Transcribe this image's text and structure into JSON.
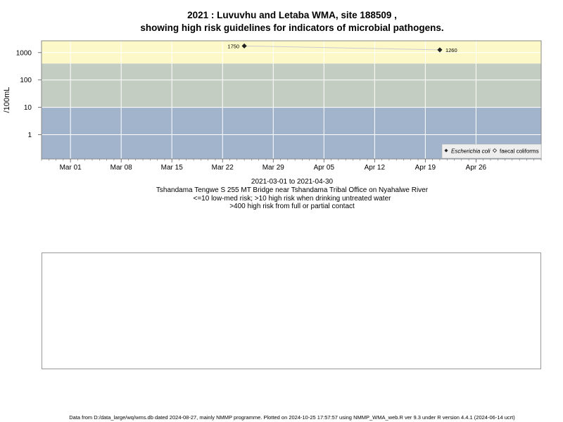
{
  "chart_data": {
    "type": "scatter",
    "title_line1": "2021 : Luvuvhu and Letaba WMA, site 188509 ,",
    "title_line2": "showing high risk guidelines for indicators of microbial pathogens.",
    "ylabel": "/100mL",
    "y_scale": "log",
    "ylim": [
      0.13,
      2700
    ],
    "y_ticks": [
      {
        "value": 1,
        "label": "1"
      },
      {
        "value": 10,
        "label": "10"
      },
      {
        "value": 100,
        "label": "100"
      },
      {
        "value": 1000,
        "label": "1000"
      }
    ],
    "x_domain": [
      "2021-02-25",
      "2021-05-05"
    ],
    "x_ticks": [
      {
        "date": "2021-03-01",
        "label": "Mar 01"
      },
      {
        "date": "2021-03-08",
        "label": "Mar 08"
      },
      {
        "date": "2021-03-15",
        "label": "Mar 15"
      },
      {
        "date": "2021-03-22",
        "label": "Mar 22"
      },
      {
        "date": "2021-03-29",
        "label": "Mar 29"
      },
      {
        "date": "2021-04-05",
        "label": "Apr 05"
      },
      {
        "date": "2021-04-12",
        "label": "Apr 12"
      },
      {
        "date": "2021-04-19",
        "label": "Apr 19"
      },
      {
        "date": "2021-04-26",
        "label": "Apr 26"
      }
    ],
    "bands": [
      {
        "from": 0.13,
        "to": 10,
        "color": "#a2b4cc"
      },
      {
        "from": 10,
        "to": 400,
        "color": "#c4cdc2"
      },
      {
        "from": 400,
        "to": 2700,
        "color": "#fcf8c8"
      }
    ],
    "series": [
      {
        "name": "Escherichia coli",
        "marker": "filled-diamond",
        "points": [
          {
            "x": "2021-03-25",
            "y": 1750,
            "label": "1750"
          },
          {
            "x": "2021-04-21",
            "y": 1260,
            "label": "1260"
          }
        ]
      },
      {
        "name": "faecal coliforms",
        "marker": "open-diamond",
        "points": []
      }
    ],
    "legend_position": "bottom-right",
    "grid": true,
    "colors": {
      "gridline": "#ffffff",
      "trend_line": "#cccccc",
      "marker": "#222222"
    }
  },
  "captions": {
    "line1": "2021-03-01 to 2021-04-30",
    "line2": "Tshandama Tengwe S 255 MT Bridge near Tshandama Tribal Office on Nyahalwe River",
    "line3": "<=10 low-med risk; >10 high risk when drinking untreated water",
    "line4": ">400 high risk from full or partial contact"
  },
  "footer": "Data from D:/data_large/wq/wms.db dated 2024-08-27, mainly NMMP programme. Plotted on 2024-10-25 17:57:57 using NMMP_WMA_web.R ver 9.3 under R version 4.4.1 (2024-06-14 ucrt)"
}
